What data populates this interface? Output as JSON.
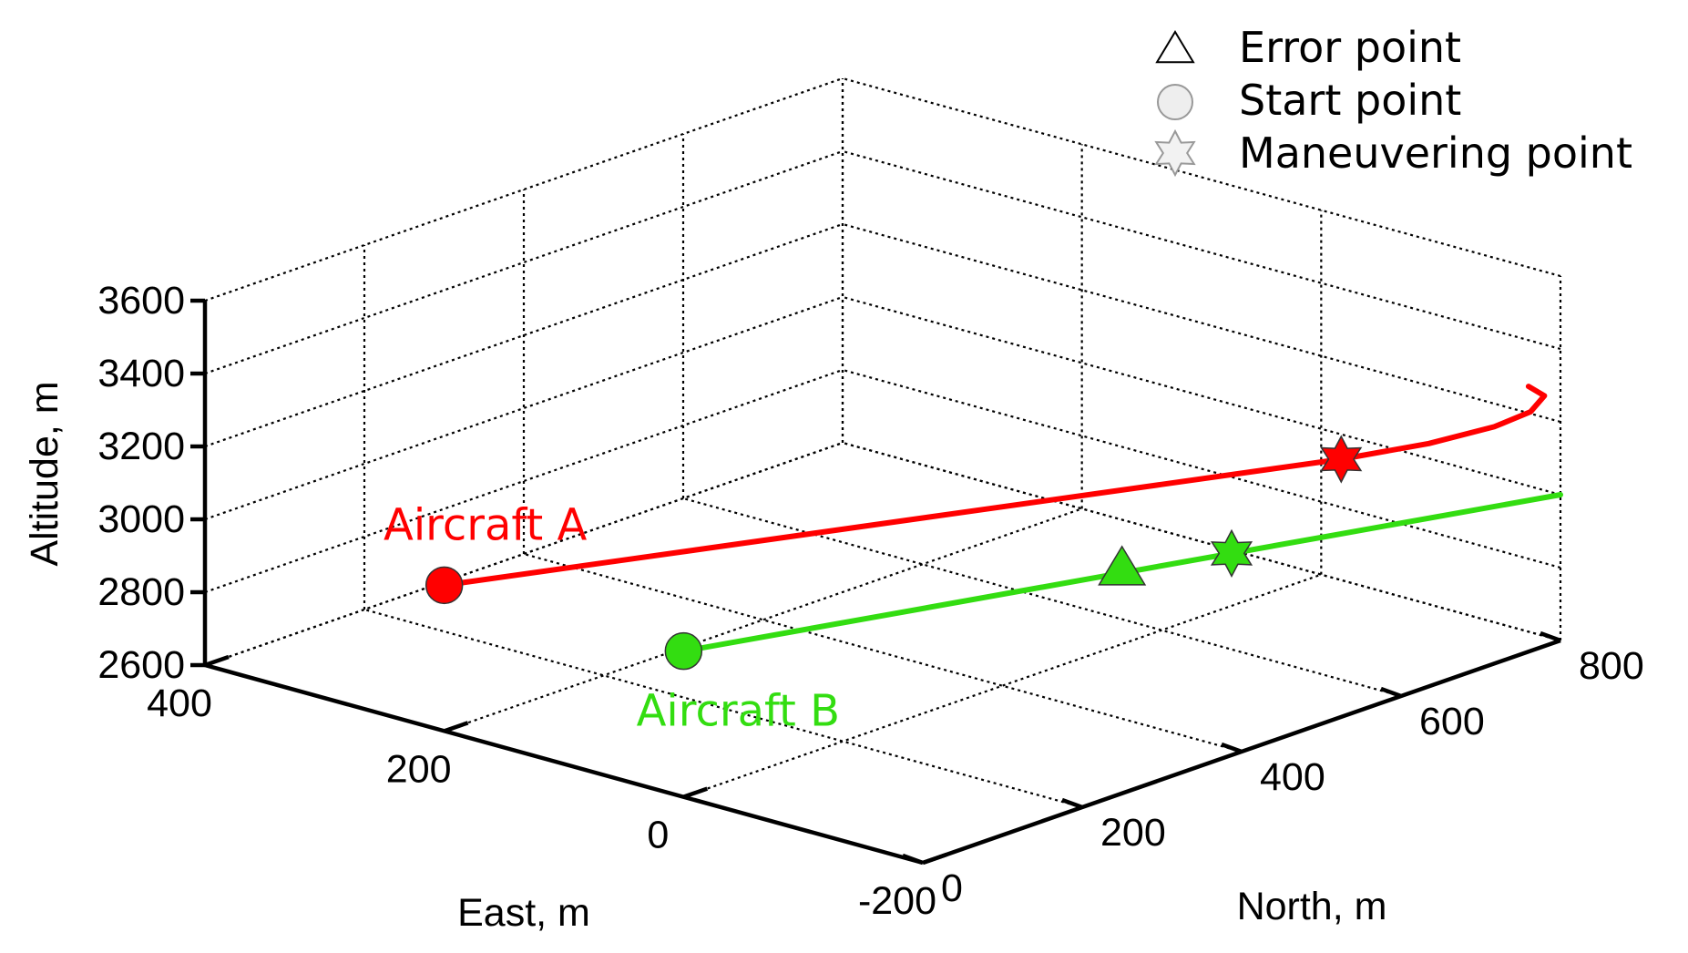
{
  "chart_data": {
    "type": "line3d",
    "title": "",
    "xlabel": "East, m",
    "ylabel": "North, m",
    "zlabel": "Altitude, m",
    "xlim": [
      -200,
      400
    ],
    "ylim": [
      0,
      800
    ],
    "zlim": [
      2600,
      3600
    ],
    "x_ticks": [
      "-200",
      "0",
      "200",
      "400"
    ],
    "y_ticks": [
      "0",
      "200",
      "400",
      "600",
      "800"
    ],
    "z_ticks": [
      "2600",
      "2800",
      "3000",
      "3200",
      "3400",
      "3600"
    ],
    "grid": true,
    "legend": {
      "position": "top-right",
      "entries": [
        {
          "marker": "triangle-icon",
          "label": "Error point"
        },
        {
          "marker": "circle-icon",
          "label": "Start point"
        },
        {
          "marker": "star-icon",
          "label": "Maneuvering point"
        }
      ]
    },
    "series": [
      {
        "name": "Aircraft A",
        "color": "#ff0000",
        "x": [
          200,
          150,
          100,
          50,
          0,
          -50,
          -70,
          -78,
          -75,
          -60,
          -40
        ],
        "y": [
          0,
          150,
          300,
          450,
          600,
          750,
          830,
          900,
          950,
          990,
          1000
        ],
        "z": [
          3000,
          3000,
          3000,
          3000,
          3000,
          3000,
          3000,
          3000,
          3000,
          3000,
          3000
        ],
        "start_point": {
          "x": 200,
          "y": 0,
          "z": 3000
        },
        "maneuvering_point": {
          "x": -50,
          "y": 750,
          "z": 3000
        }
      },
      {
        "name": "Aircraft B",
        "color": "#33dd11",
        "x": [
          0,
          -50,
          -100,
          -150,
          -200
        ],
        "y": [
          0,
          200,
          400,
          600,
          800
        ],
        "z": [
          3000,
          3000,
          3000,
          3000,
          3000
        ],
        "start_point": {
          "x": 0,
          "y": 0,
          "z": 3000
        },
        "error_point": {
          "x": -100,
          "y": 400,
          "z": 3000
        },
        "maneuvering_point": {
          "x": -125,
          "y": 500,
          "z": 3000
        }
      }
    ]
  }
}
